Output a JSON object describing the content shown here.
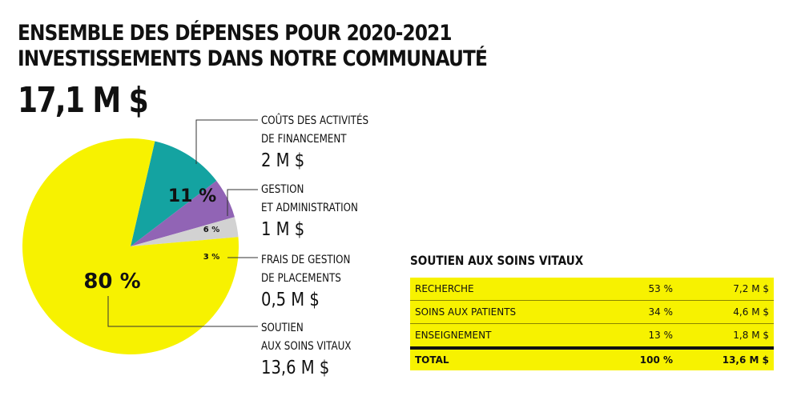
{
  "title": {
    "line1": "ENSEMBLE DES DÉPENSES POUR 2020-2021",
    "line2": "INVESTISSEMENTS DANS NOTRE COMMUNAUTÉ"
  },
  "total": "17,1 M $",
  "colors": {
    "yellow": "#f7f200",
    "teal": "#14a3a1",
    "purple": "#9164b5",
    "grey": "#d2d2d2"
  },
  "chart_data": {
    "type": "pie",
    "slices": [
      {
        "name_line1": "COÛTS DES ACTIVITÉS",
        "name_line2": "DE FINANCEMENT",
        "amount": "2 M $",
        "value": 11,
        "pct_label": "11 %",
        "color": "#14a3a1"
      },
      {
        "name_line1": "GESTION",
        "name_line2": "ET ADMINISTRATION",
        "amount": "1 M $",
        "value": 6,
        "pct_label": "6 %",
        "color": "#9164b5"
      },
      {
        "name_line1": "FRAIS DE GESTION",
        "name_line2": "DE PLACEMENTS",
        "amount": "0,5 M $",
        "value": 3,
        "pct_label": "3 %",
        "color": "#d2d2d2"
      },
      {
        "name_line1": "SOUTIEN",
        "name_line2": "AUX SOINS VITAUX",
        "amount": "13,6 M $",
        "value": 80,
        "pct_label": "80 %",
        "color": "#f7f200"
      }
    ]
  },
  "table": {
    "title": "SOUTIEN AUX SOINS VITAUX",
    "rows": [
      {
        "name": "RECHERCHE",
        "pct": "53 %",
        "amount": "7,2 M $"
      },
      {
        "name": "SOINS AUX PATIENTS",
        "pct": "34 %",
        "amount": "4,6 M $"
      },
      {
        "name": "ENSEIGNEMENT",
        "pct": "13 %",
        "amount": "1,8 M $"
      }
    ],
    "total": {
      "name": "TOTAL",
      "pct": "100 %",
      "amount": "13,6 M $"
    }
  }
}
